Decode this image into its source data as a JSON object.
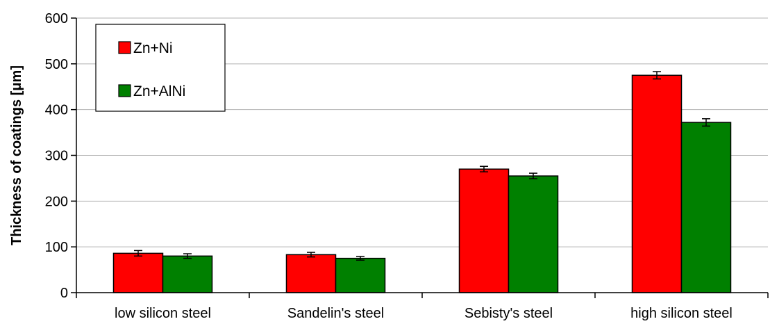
{
  "chart_data": {
    "type": "bar",
    "title": "",
    "xlabel": "",
    "ylabel": "Thickness of coatings [μm]",
    "ylim": [
      0,
      600
    ],
    "yticks": [
      0,
      100,
      200,
      300,
      400,
      500,
      600
    ],
    "grid": true,
    "legend_position": "top-left",
    "categories": [
      "low silicon steel",
      "Sandelin's steel",
      "Sebisty's steel",
      "high silicon steel"
    ],
    "series": [
      {
        "name": "Zn+Ni",
        "color": "#ff0000",
        "values": [
          86,
          83,
          270,
          475
        ],
        "errors": [
          6,
          5,
          6,
          8
        ]
      },
      {
        "name": "Zn+AlNi",
        "color": "#008000",
        "values": [
          80,
          75,
          255,
          372
        ],
        "errors": [
          5,
          4,
          6,
          8
        ]
      }
    ]
  }
}
